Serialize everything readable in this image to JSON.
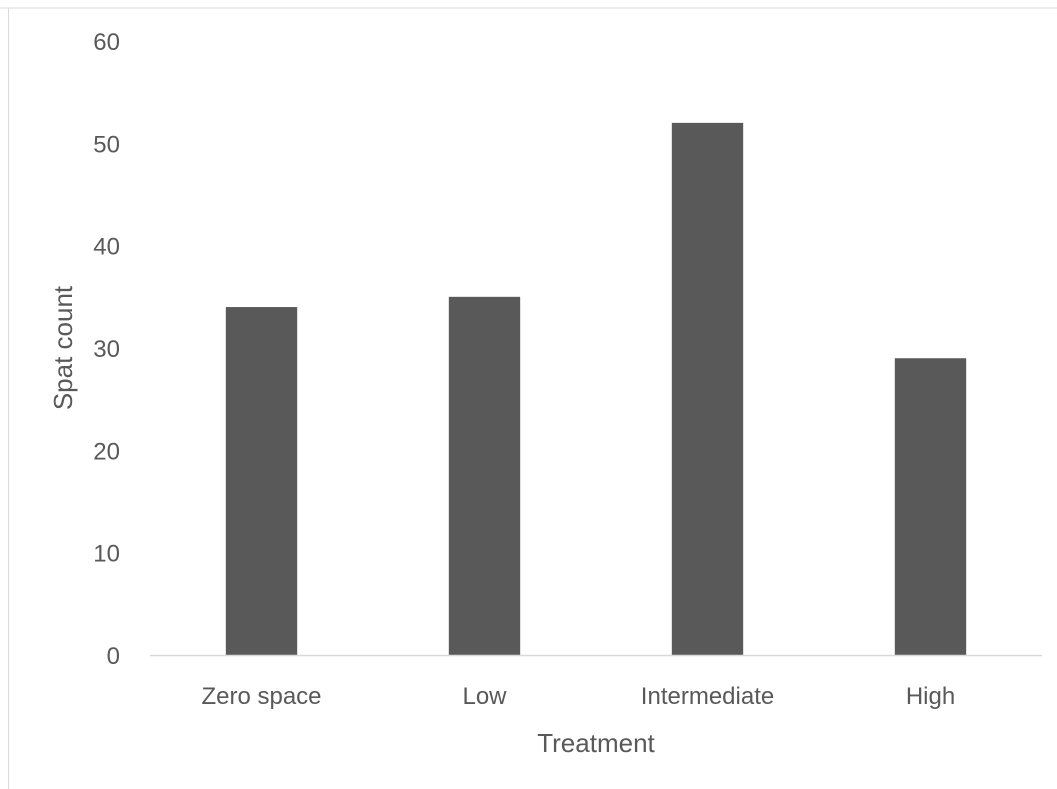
{
  "chart_data": {
    "type": "bar",
    "title": "",
    "xlabel": "Treatment",
    "ylabel": "Spat count",
    "categories": [
      "Zero space",
      "Low",
      "Intermediate",
      "High"
    ],
    "values": [
      34,
      35,
      52,
      29
    ],
    "ylim": [
      0,
      60
    ],
    "yticks": [
      0,
      10,
      20,
      30,
      40,
      50,
      60
    ],
    "grid": false,
    "legend": "none",
    "bar_color": "#595959"
  }
}
